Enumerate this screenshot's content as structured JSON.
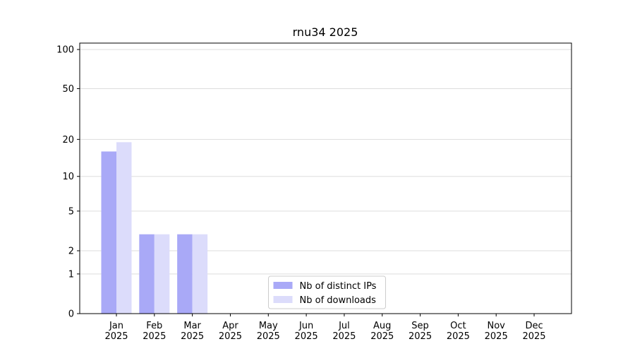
{
  "chart_data": {
    "type": "bar",
    "title": "rnu34 2025",
    "categories": [
      "Jan\n2025",
      "Feb\n2025",
      "Mar\n2025",
      "Apr\n2025",
      "May\n2025",
      "Jun\n2025",
      "Jul\n2025",
      "Aug\n2025",
      "Sep\n2025",
      "Oct\n2025",
      "Nov\n2025",
      "Dec\n2025"
    ],
    "series": [
      {
        "name": "Nb of distinct IPs",
        "color": "#a9a9f7",
        "values": [
          16,
          3,
          3,
          0,
          0,
          0,
          0,
          0,
          0,
          0,
          0,
          0
        ]
      },
      {
        "name": "Nb of downloads",
        "color": "#dcdcfb",
        "values": [
          19,
          3,
          3,
          0,
          0,
          0,
          0,
          0,
          0,
          0,
          0,
          0
        ]
      }
    ],
    "yscale": "log1p",
    "ylim": [
      0,
      112
    ],
    "yticks": [
      0,
      1,
      2,
      5,
      10,
      20,
      50,
      100
    ],
    "grid": true,
    "legend": "lower center"
  }
}
